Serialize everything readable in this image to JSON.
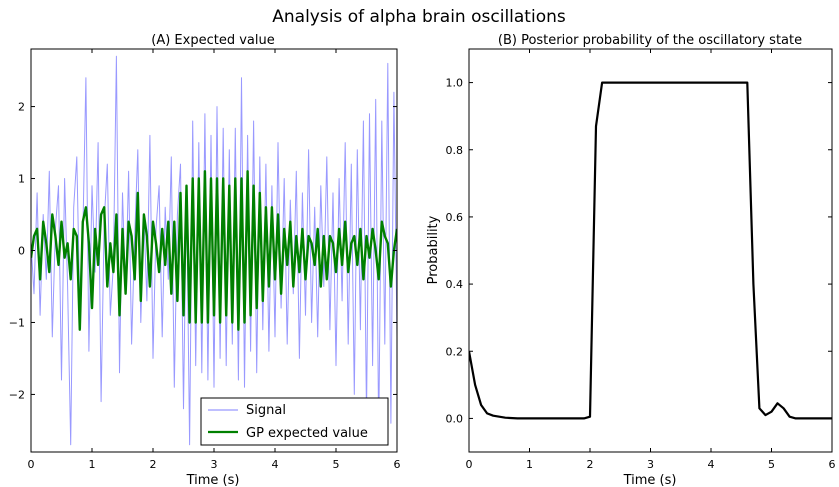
{
  "figure": {
    "suptitle": "Analysis of alpha brain oscillations"
  },
  "chart_data": [
    {
      "type": "line",
      "title": "(A) Expected value",
      "xlabel": "Time (s)",
      "ylabel": "",
      "xlim": [
        0,
        6
      ],
      "ylim": [
        -2.8,
        2.8
      ],
      "xticks": [
        "0",
        "1",
        "2",
        "3",
        "4",
        "5",
        "6"
      ],
      "yticks": [
        "−2",
        "−1",
        "0",
        "1",
        "2"
      ],
      "grid": false,
      "legend_position": "bottom-right",
      "legend": [
        "Signal",
        "GP expected value"
      ],
      "colors": {
        "signal": "#9999ff",
        "gp": "#008000"
      },
      "series": [
        {
          "name": "Signal",
          "x": [
            0.0,
            0.05,
            0.1,
            0.15,
            0.2,
            0.25,
            0.3,
            0.35,
            0.4,
            0.45,
            0.5,
            0.55,
            0.6,
            0.65,
            0.7,
            0.75,
            0.8,
            0.85,
            0.9,
            0.95,
            1.0,
            1.05,
            1.1,
            1.15,
            1.2,
            1.25,
            1.3,
            1.35,
            1.4,
            1.45,
            1.5,
            1.55,
            1.6,
            1.65,
            1.7,
            1.75,
            1.8,
            1.85,
            1.9,
            1.95,
            2.0,
            2.05,
            2.1,
            2.15,
            2.2,
            2.25,
            2.3,
            2.35,
            2.4,
            2.45,
            2.5,
            2.55,
            2.6,
            2.65,
            2.7,
            2.75,
            2.8,
            2.85,
            2.9,
            2.95,
            3.0,
            3.05,
            3.1,
            3.15,
            3.2,
            3.25,
            3.3,
            3.35,
            3.4,
            3.45,
            3.5,
            3.55,
            3.6,
            3.65,
            3.7,
            3.75,
            3.8,
            3.85,
            3.9,
            3.95,
            4.0,
            4.05,
            4.1,
            4.15,
            4.2,
            4.25,
            4.3,
            4.35,
            4.4,
            4.45,
            4.5,
            4.55,
            4.6,
            4.65,
            4.7,
            4.75,
            4.8,
            4.85,
            4.9,
            4.95,
            5.0,
            5.05,
            5.1,
            5.15,
            5.2,
            5.25,
            5.3,
            5.35,
            5.4,
            5.45,
            5.5,
            5.55,
            5.6,
            5.65,
            5.7,
            5.75,
            5.8,
            5.85,
            5.9,
            5.95,
            6.0
          ],
          "values": [
            0.1,
            -0.6,
            0.8,
            -0.9,
            0.5,
            -0.4,
            1.1,
            -1.2,
            0.3,
            0.9,
            -1.8,
            1.0,
            -0.5,
            -2.7,
            0.6,
            1.3,
            -0.8,
            0.2,
            2.4,
            -1.4,
            0.9,
            -0.3,
            1.5,
            -2.1,
            0.4,
            1.2,
            -0.9,
            -0.2,
            2.7,
            -1.7,
            0.8,
            -0.6,
            1.1,
            -1.3,
            0.2,
            1.4,
            -1.0,
            0.5,
            -0.7,
            1.6,
            -1.5,
            0.3,
            0.9,
            -1.2,
            0.6,
            -0.4,
            1.3,
            -1.9,
            0.5,
            1.2,
            -2.2,
            0.9,
            -2.7,
            1.8,
            -1.6,
            1.5,
            -1.7,
            1.9,
            -1.8,
            1.6,
            -1.9,
            2.0,
            -1.5,
            1.7,
            -1.6,
            1.4,
            -1.3,
            1.7,
            -1.8,
            2.4,
            -1.9,
            1.6,
            -1.4,
            1.8,
            -1.7,
            1.3,
            -1.1,
            1.2,
            -1.4,
            0.9,
            -1.2,
            1.5,
            -0.8,
            1.0,
            -1.3,
            0.7,
            -0.6,
            1.1,
            -1.5,
            0.8,
            -0.9,
            1.4,
            -1.0,
            0.6,
            -1.2,
            0.9,
            -0.5,
            1.3,
            -1.1,
            0.8,
            -1.6,
            1.0,
            -0.7,
            1.5,
            -1.3,
            1.2,
            -2.0,
            1.4,
            -1.1,
            1.8,
            -2.3,
            1.9,
            -1.6,
            2.1,
            -2.6,
            1.8,
            -1.3,
            2.6,
            -2.4,
            2.2,
            -1.2
          ]
        },
        {
          "name": "GP expected value",
          "x": [
            0.0,
            0.05,
            0.1,
            0.15,
            0.2,
            0.25,
            0.3,
            0.35,
            0.4,
            0.45,
            0.5,
            0.55,
            0.6,
            0.65,
            0.7,
            0.75,
            0.8,
            0.85,
            0.9,
            0.95,
            1.0,
            1.05,
            1.1,
            1.15,
            1.2,
            1.25,
            1.3,
            1.35,
            1.4,
            1.45,
            1.5,
            1.55,
            1.6,
            1.65,
            1.7,
            1.75,
            1.8,
            1.85,
            1.9,
            1.95,
            2.0,
            2.05,
            2.1,
            2.15,
            2.2,
            2.25,
            2.3,
            2.35,
            2.4,
            2.45,
            2.5,
            2.55,
            2.6,
            2.65,
            2.7,
            2.75,
            2.8,
            2.85,
            2.9,
            2.95,
            3.0,
            3.05,
            3.1,
            3.15,
            3.2,
            3.25,
            3.3,
            3.35,
            3.4,
            3.45,
            3.5,
            3.55,
            3.6,
            3.65,
            3.7,
            3.75,
            3.8,
            3.85,
            3.9,
            3.95,
            4.0,
            4.05,
            4.1,
            4.15,
            4.2,
            4.25,
            4.3,
            4.35,
            4.4,
            4.45,
            4.5,
            4.55,
            4.6,
            4.65,
            4.7,
            4.75,
            4.8,
            4.85,
            4.9,
            4.95,
            5.0,
            5.05,
            5.1,
            5.15,
            5.2,
            5.25,
            5.3,
            5.35,
            5.4,
            5.45,
            5.5,
            5.55,
            5.6,
            5.65,
            5.7,
            5.75,
            5.8,
            5.85,
            5.9,
            5.95,
            6.0
          ],
          "values": [
            -0.1,
            0.2,
            0.3,
            -0.4,
            0.4,
            0.1,
            -0.3,
            0.5,
            0.2,
            -0.2,
            0.4,
            -0.1,
            0.1,
            -0.4,
            0.3,
            0.2,
            -1.1,
            0.4,
            0.6,
            0.1,
            -0.8,
            0.3,
            -0.2,
            0.5,
            0.6,
            -0.5,
            0.1,
            -0.3,
            0.5,
            -0.9,
            0.3,
            -0.6,
            0.4,
            0.2,
            -0.4,
            0.8,
            -0.7,
            0.5,
            0.2,
            -0.5,
            0.4,
            0.1,
            -0.3,
            0.3,
            -0.2,
            0.4,
            -0.6,
            0.4,
            -0.7,
            0.8,
            -0.9,
            0.9,
            -1.0,
            1.0,
            -1.0,
            1.0,
            -1.0,
            1.1,
            -1.0,
            1.0,
            -0.9,
            1.0,
            -1.0,
            1.0,
            -0.9,
            0.9,
            -1.0,
            1.0,
            -1.1,
            1.0,
            -1.0,
            1.1,
            -0.9,
            0.9,
            -0.8,
            0.8,
            -0.7,
            0.6,
            -0.5,
            0.6,
            -0.4,
            0.5,
            -0.6,
            0.3,
            -0.2,
            0.4,
            -0.5,
            0.2,
            -0.3,
            0.3,
            -0.4,
            0.2,
            0.1,
            -0.2,
            0.3,
            -0.5,
            0.2,
            -0.4,
            0.2,
            0.1,
            -0.3,
            0.3,
            -0.2,
            0.4,
            -0.3,
            0.1,
            0.2,
            -0.2,
            0.3,
            -0.4,
            0.2,
            -0.1,
            0.3,
            0.0,
            -0.4,
            0.4,
            0.2,
            0.1,
            -0.5,
            0.0,
            0.3
          ]
        }
      ]
    },
    {
      "type": "line",
      "title": "(B) Posterior probability of the oscillatory state",
      "xlabel": "Time (s)",
      "ylabel": "Probability",
      "xlim": [
        0,
        6
      ],
      "ylim": [
        -0.1,
        1.1
      ],
      "xticks": [
        "0",
        "1",
        "2",
        "3",
        "4",
        "5",
        "6"
      ],
      "yticks": [
        "0.0",
        "0.2",
        "0.4",
        "0.6",
        "0.8",
        "1.0"
      ],
      "grid": false,
      "colors": {
        "line": "#000000"
      },
      "series": [
        {
          "x": [
            0.0,
            0.1,
            0.2,
            0.3,
            0.4,
            0.5,
            0.6,
            0.8,
            1.0,
            1.5,
            1.9,
            2.0,
            2.1,
            2.2,
            3.0,
            4.0,
            4.6,
            4.7,
            4.8,
            4.9,
            5.0,
            5.1,
            5.2,
            5.3,
            5.4,
            5.6,
            6.0
          ],
          "values": [
            0.2,
            0.1,
            0.04,
            0.015,
            0.008,
            0.005,
            0.002,
            0.0,
            0.0,
            0.0,
            0.0,
            0.005,
            0.87,
            1.0,
            1.0,
            1.0,
            1.0,
            0.4,
            0.03,
            0.01,
            0.02,
            0.045,
            0.03,
            0.005,
            0.0,
            0.0,
            0.0
          ]
        }
      ]
    }
  ]
}
